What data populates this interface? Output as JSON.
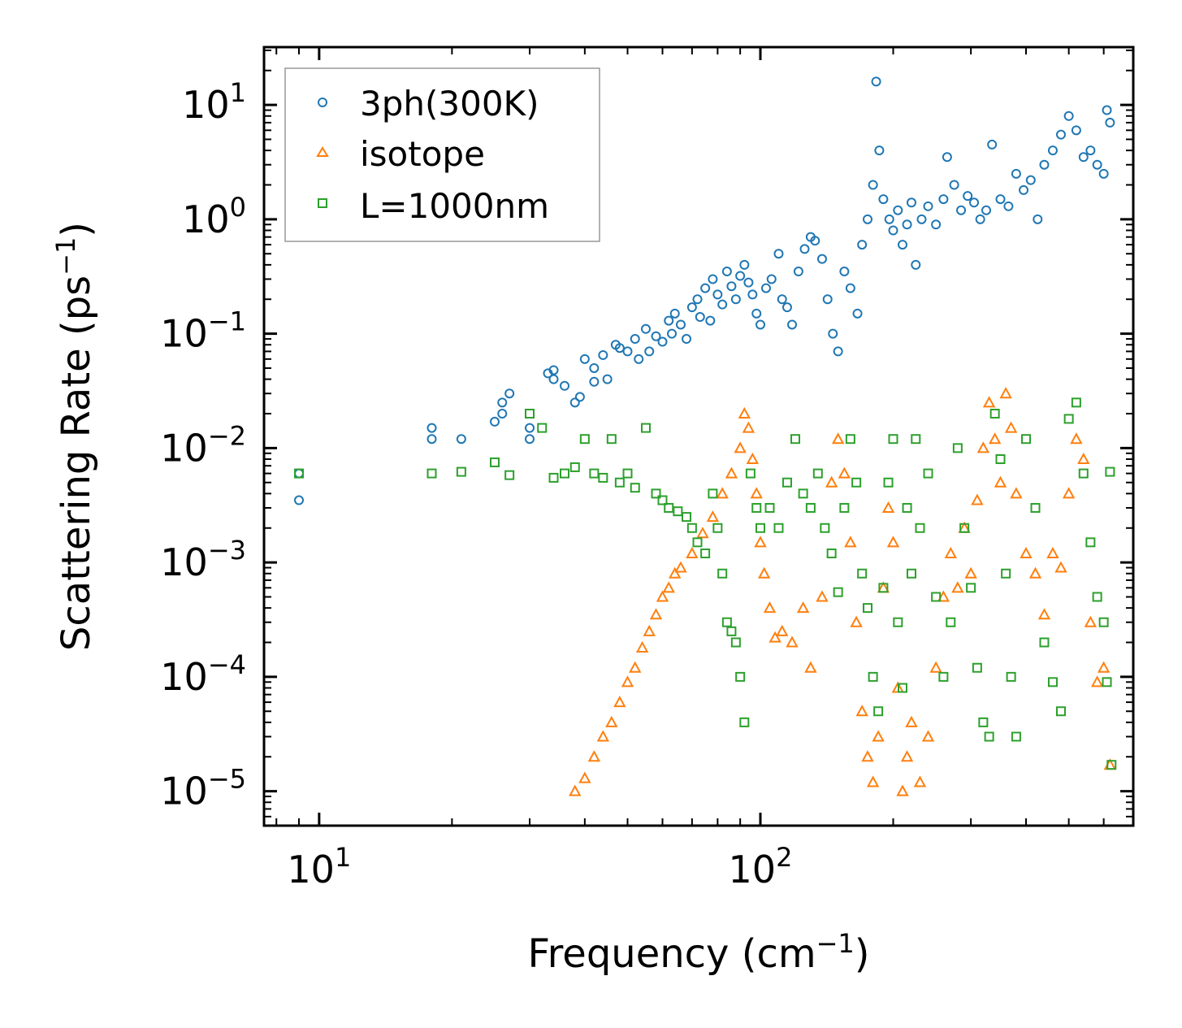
{
  "chart_data": {
    "type": "scatter",
    "title": "",
    "xlabel": "Frequency (cm",
    "xlabel_sup": "−1",
    "xlabel_close": ")",
    "ylabel": "Scattering Rate (ps",
    "ylabel_sup": "−1",
    "ylabel_close": ")",
    "xscale": "log",
    "yscale": "log",
    "xlim": [
      7.5,
      700
    ],
    "ylim": [
      5e-06,
      32
    ],
    "grid": false,
    "legend_position": "top-left",
    "x_ticks": [
      {
        "value": 10,
        "base": "10",
        "exp": "1"
      },
      {
        "value": 100,
        "base": "10",
        "exp": "2"
      }
    ],
    "y_ticks": [
      {
        "value": 10,
        "base": "10",
        "exp": "1"
      },
      {
        "value": 1,
        "base": "10",
        "exp": "0"
      },
      {
        "value": 0.1,
        "base": "10",
        "exp": "−1"
      },
      {
        "value": 0.01,
        "base": "10",
        "exp": "−2"
      },
      {
        "value": 0.001,
        "base": "10",
        "exp": "−3"
      },
      {
        "value": 0.0001,
        "base": "10",
        "exp": "−4"
      },
      {
        "value": 1e-05,
        "base": "10",
        "exp": "−5"
      }
    ],
    "series": [
      {
        "name": "3ph(300K)",
        "marker": "circle",
        "color": "#1f77b4",
        "points": [
          [
            9,
            0.0035
          ],
          [
            9,
            0.006
          ],
          [
            18,
            0.012
          ],
          [
            18,
            0.015
          ],
          [
            21,
            0.012
          ],
          [
            25,
            0.017
          ],
          [
            26,
            0.02
          ],
          [
            26,
            0.025
          ],
          [
            27,
            0.03
          ],
          [
            30,
            0.015
          ],
          [
            30,
            0.012
          ],
          [
            33,
            0.045
          ],
          [
            34,
            0.048
          ],
          [
            34,
            0.04
          ],
          [
            36,
            0.035
          ],
          [
            38,
            0.025
          ],
          [
            39,
            0.028
          ],
          [
            40,
            0.06
          ],
          [
            42,
            0.05
          ],
          [
            42,
            0.038
          ],
          [
            44,
            0.065
          ],
          [
            45,
            0.04
          ],
          [
            47,
            0.08
          ],
          [
            48,
            0.075
          ],
          [
            50,
            0.07
          ],
          [
            52,
            0.09
          ],
          [
            53,
            0.06
          ],
          [
            55,
            0.11
          ],
          [
            56,
            0.07
          ],
          [
            58,
            0.095
          ],
          [
            60,
            0.085
          ],
          [
            62,
            0.13
          ],
          [
            63,
            0.1
          ],
          [
            64,
            0.15
          ],
          [
            66,
            0.12
          ],
          [
            68,
            0.09
          ],
          [
            70,
            0.17
          ],
          [
            72,
            0.2
          ],
          [
            73,
            0.14
          ],
          [
            75,
            0.25
          ],
          [
            77,
            0.13
          ],
          [
            78,
            0.3
          ],
          [
            80,
            0.22
          ],
          [
            82,
            0.18
          ],
          [
            84,
            0.35
          ],
          [
            86,
            0.26
          ],
          [
            88,
            0.2
          ],
          [
            90,
            0.32
          ],
          [
            92,
            0.4
          ],
          [
            94,
            0.28
          ],
          [
            96,
            0.22
          ],
          [
            98,
            0.15
          ],
          [
            100,
            0.12
          ],
          [
            103,
            0.25
          ],
          [
            106,
            0.3
          ],
          [
            110,
            0.5
          ],
          [
            112,
            0.2
          ],
          [
            115,
            0.17
          ],
          [
            118,
            0.12
          ],
          [
            122,
            0.35
          ],
          [
            126,
            0.55
          ],
          [
            130,
            0.7
          ],
          [
            133,
            0.65
          ],
          [
            138,
            0.45
          ],
          [
            142,
            0.2
          ],
          [
            146,
            0.1
          ],
          [
            150,
            0.07
          ],
          [
            155,
            0.35
          ],
          [
            160,
            0.25
          ],
          [
            166,
            0.15
          ],
          [
            170,
            0.6
          ],
          [
            175,
            1.0
          ],
          [
            180,
            2.0
          ],
          [
            183,
            16
          ],
          [
            186,
            4.0
          ],
          [
            190,
            1.5
          ],
          [
            196,
            1.0
          ],
          [
            200,
            0.8
          ],
          [
            205,
            1.2
          ],
          [
            210,
            0.6
          ],
          [
            215,
            0.9
          ],
          [
            220,
            1.4
          ],
          [
            225,
            0.4
          ],
          [
            232,
            1.0
          ],
          [
            240,
            1.3
          ],
          [
            250,
            0.9
          ],
          [
            260,
            1.5
          ],
          [
            265,
            3.5
          ],
          [
            275,
            2.0
          ],
          [
            285,
            1.2
          ],
          [
            295,
            1.6
          ],
          [
            305,
            1.4
          ],
          [
            315,
            1.0
          ],
          [
            325,
            1.2
          ],
          [
            335,
            4.5
          ],
          [
            350,
            1.5
          ],
          [
            365,
            1.3
          ],
          [
            380,
            2.5
          ],
          [
            395,
            1.8
          ],
          [
            410,
            2.2
          ],
          [
            425,
            1.0
          ],
          [
            440,
            3.0
          ],
          [
            460,
            4.0
          ],
          [
            480,
            5.5
          ],
          [
            500,
            8.0
          ],
          [
            520,
            6.0
          ],
          [
            540,
            3.5
          ],
          [
            560,
            4.0
          ],
          [
            580,
            3.0
          ],
          [
            600,
            2.5
          ],
          [
            610,
            9.0
          ],
          [
            620,
            7.0
          ]
        ]
      },
      {
        "name": "isotope",
        "marker": "triangle",
        "color": "#ff7f0e",
        "points": [
          [
            38,
            1e-05
          ],
          [
            40,
            1.3e-05
          ],
          [
            42,
            2e-05
          ],
          [
            44,
            3e-05
          ],
          [
            46,
            4e-05
          ],
          [
            48,
            6e-05
          ],
          [
            50,
            9e-05
          ],
          [
            52,
            0.00012
          ],
          [
            54,
            0.00018
          ],
          [
            56,
            0.00025
          ],
          [
            58,
            0.00035
          ],
          [
            60,
            0.0005
          ],
          [
            62,
            0.0006
          ],
          [
            64,
            0.0008
          ],
          [
            66,
            0.0009
          ],
          [
            70,
            0.0012
          ],
          [
            74,
            0.0018
          ],
          [
            78,
            0.0025
          ],
          [
            82,
            0.004
          ],
          [
            86,
            0.006
          ],
          [
            90,
            0.01
          ],
          [
            92,
            0.02
          ],
          [
            94,
            0.015
          ],
          [
            96,
            0.008
          ],
          [
            98,
            0.004
          ],
          [
            100,
            0.0015
          ],
          [
            102,
            0.0008
          ],
          [
            105,
            0.0004
          ],
          [
            108,
            0.00022
          ],
          [
            112,
            0.00025
          ],
          [
            118,
            0.0002
          ],
          [
            125,
            0.0004
          ],
          [
            130,
            0.00012
          ],
          [
            138,
            0.0005
          ],
          [
            145,
            0.005
          ],
          [
            150,
            0.012
          ],
          [
            155,
            0.006
          ],
          [
            160,
            0.0015
          ],
          [
            165,
            0.0003
          ],
          [
            170,
            5e-05
          ],
          [
            175,
            2e-05
          ],
          [
            180,
            1.2e-05
          ],
          [
            185,
            3e-05
          ],
          [
            190,
            0.0006
          ],
          [
            195,
            0.003
          ],
          [
            200,
            0.0015
          ],
          [
            205,
            8e-05
          ],
          [
            210,
            1e-05
          ],
          [
            215,
            2e-05
          ],
          [
            220,
            4e-05
          ],
          [
            230,
            1.2e-05
          ],
          [
            240,
            3e-05
          ],
          [
            250,
            0.00012
          ],
          [
            260,
            0.0005
          ],
          [
            270,
            0.0012
          ],
          [
            280,
            0.0006
          ],
          [
            290,
            0.002
          ],
          [
            300,
            0.0008
          ],
          [
            310,
            0.0035
          ],
          [
            320,
            0.01
          ],
          [
            330,
            0.025
          ],
          [
            340,
            0.012
          ],
          [
            350,
            0.005
          ],
          [
            360,
            0.03
          ],
          [
            370,
            0.015
          ],
          [
            380,
            0.004
          ],
          [
            400,
            0.0012
          ],
          [
            420,
            0.0008
          ],
          [
            440,
            0.00035
          ],
          [
            460,
            0.0012
          ],
          [
            480,
            0.0009
          ],
          [
            500,
            0.004
          ],
          [
            520,
            0.012
          ],
          [
            540,
            0.008
          ],
          [
            560,
            0.0003
          ],
          [
            580,
            9e-05
          ],
          [
            600,
            0.00012
          ],
          [
            620,
            1.7e-05
          ]
        ]
      },
      {
        "name": "L=1000nm",
        "marker": "square",
        "color": "#2ca02c",
        "points": [
          [
            9,
            0.006
          ],
          [
            18,
            0.006
          ],
          [
            21,
            0.0062
          ],
          [
            25,
            0.0075
          ],
          [
            27,
            0.0058
          ],
          [
            30,
            0.02
          ],
          [
            32,
            0.015
          ],
          [
            34,
            0.0055
          ],
          [
            36,
            0.006
          ],
          [
            38,
            0.0068
          ],
          [
            40,
            0.012
          ],
          [
            42,
            0.006
          ],
          [
            44,
            0.0055
          ],
          [
            46,
            0.012
          ],
          [
            48,
            0.005
          ],
          [
            50,
            0.006
          ],
          [
            52,
            0.0045
          ],
          [
            55,
            0.015
          ],
          [
            58,
            0.004
          ],
          [
            60,
            0.0035
          ],
          [
            62,
            0.003
          ],
          [
            65,
            0.0028
          ],
          [
            68,
            0.0025
          ],
          [
            70,
            0.002
          ],
          [
            72,
            0.0015
          ],
          [
            75,
            0.0012
          ],
          [
            78,
            0.004
          ],
          [
            80,
            0.002
          ],
          [
            82,
            0.0008
          ],
          [
            84,
            0.0003
          ],
          [
            86,
            0.00025
          ],
          [
            88,
            0.0002
          ],
          [
            90,
            0.0001
          ],
          [
            92,
            4e-05
          ],
          [
            95,
            0.006
          ],
          [
            98,
            0.003
          ],
          [
            100,
            0.002
          ],
          [
            105,
            0.003
          ],
          [
            110,
            0.002
          ],
          [
            115,
            0.005
          ],
          [
            120,
            0.012
          ],
          [
            125,
            0.004
          ],
          [
            130,
            0.003
          ],
          [
            135,
            0.006
          ],
          [
            140,
            0.002
          ],
          [
            145,
            0.0012
          ],
          [
            150,
            0.00055
          ],
          [
            155,
            0.003
          ],
          [
            160,
            0.012
          ],
          [
            165,
            0.005
          ],
          [
            170,
            0.0008
          ],
          [
            175,
            0.0004
          ],
          [
            180,
            0.0001
          ],
          [
            185,
            5e-05
          ],
          [
            190,
            0.0006
          ],
          [
            195,
            0.005
          ],
          [
            200,
            0.012
          ],
          [
            205,
            0.0003
          ],
          [
            210,
            8e-05
          ],
          [
            215,
            0.003
          ],
          [
            220,
            0.0008
          ],
          [
            225,
            0.012
          ],
          [
            230,
            0.002
          ],
          [
            240,
            0.006
          ],
          [
            250,
            0.0005
          ],
          [
            260,
            0.0001
          ],
          [
            270,
            0.0003
          ],
          [
            280,
            0.01
          ],
          [
            290,
            0.002
          ],
          [
            300,
            0.0006
          ],
          [
            310,
            0.00012
          ],
          [
            320,
            4e-05
          ],
          [
            330,
            3e-05
          ],
          [
            340,
            0.02
          ],
          [
            350,
            0.008
          ],
          [
            360,
            0.0008
          ],
          [
            370,
            0.0001
          ],
          [
            380,
            3e-05
          ],
          [
            400,
            0.012
          ],
          [
            420,
            0.003
          ],
          [
            440,
            0.0002
          ],
          [
            460,
            9e-05
          ],
          [
            480,
            5e-05
          ],
          [
            500,
            0.018
          ],
          [
            520,
            0.025
          ],
          [
            540,
            0.006
          ],
          [
            560,
            0.0015
          ],
          [
            580,
            0.0005
          ],
          [
            600,
            0.0003
          ],
          [
            610,
            9e-05
          ],
          [
            620,
            0.0062
          ],
          [
            625,
            1.7e-05
          ]
        ]
      }
    ]
  }
}
